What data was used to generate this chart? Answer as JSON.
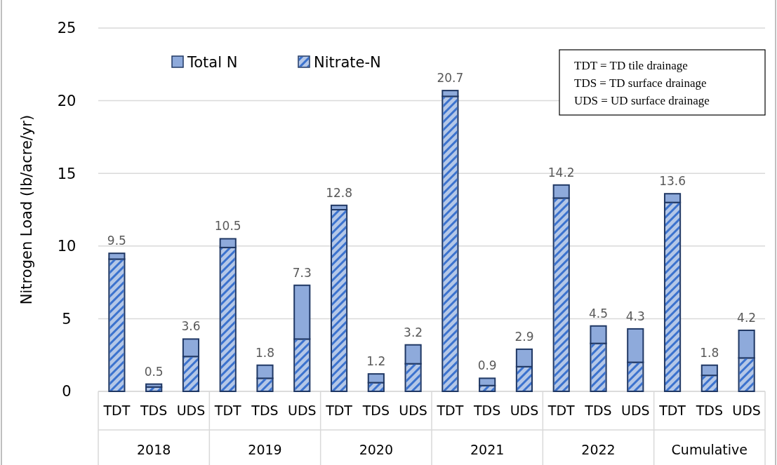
{
  "chart_data": {
    "type": "bar",
    "stacked": true,
    "ylabel": "Nitrogen Load (lb/acre/yr)",
    "categories": [
      "TDT",
      "TDS",
      "UDS",
      "TDT",
      "TDS",
      "UDS",
      "TDT",
      "TDS",
      "UDS",
      "TDT",
      "TDS",
      "UDS",
      "TDT",
      "TDS",
      "UDS",
      "TDT",
      "TDS",
      "UDS"
    ],
    "series": [
      {
        "name": "Nitrate-N",
        "color": "#b4c7e7",
        "values": [
          9.1,
          0.3,
          2.4,
          9.9,
          0.9,
          3.6,
          12.5,
          0.6,
          1.9,
          20.3,
          0.4,
          1.7,
          13.3,
          3.3,
          2.0,
          13.0,
          1.1,
          2.3
        ]
      },
      {
        "name": "Total N",
        "color": "#8eaadb",
        "values": [
          0.4,
          0.2,
          1.2,
          0.6,
          0.9,
          3.7,
          0.3,
          0.6,
          1.3,
          0.4,
          0.5,
          1.2,
          0.9,
          1.2,
          2.3,
          0.6,
          0.7,
          1.9
        ]
      }
    ],
    "totals": [
      "9.5",
      "0.5",
      "3.6",
      "10.5",
      "1.8",
      "7.3",
      "12.8",
      "1.2",
      "3.2",
      "20.7",
      "0.9",
      "2.9",
      "14.2",
      "4.5",
      "4.3",
      "13.6",
      "1.8",
      "4.2"
    ],
    "ylim": [
      0,
      25
    ],
    "yticks": [
      0,
      5,
      10,
      15,
      20,
      25
    ],
    "grid": "y",
    "legend": "top left",
    "annotations": [
      "TDT = TD tile drainage",
      "TDS = TD surface drainage",
      "UDS = UD surface drainage",
      "2018",
      "2019",
      "2020",
      "2021",
      "2022",
      "Cumulative"
    ]
  }
}
